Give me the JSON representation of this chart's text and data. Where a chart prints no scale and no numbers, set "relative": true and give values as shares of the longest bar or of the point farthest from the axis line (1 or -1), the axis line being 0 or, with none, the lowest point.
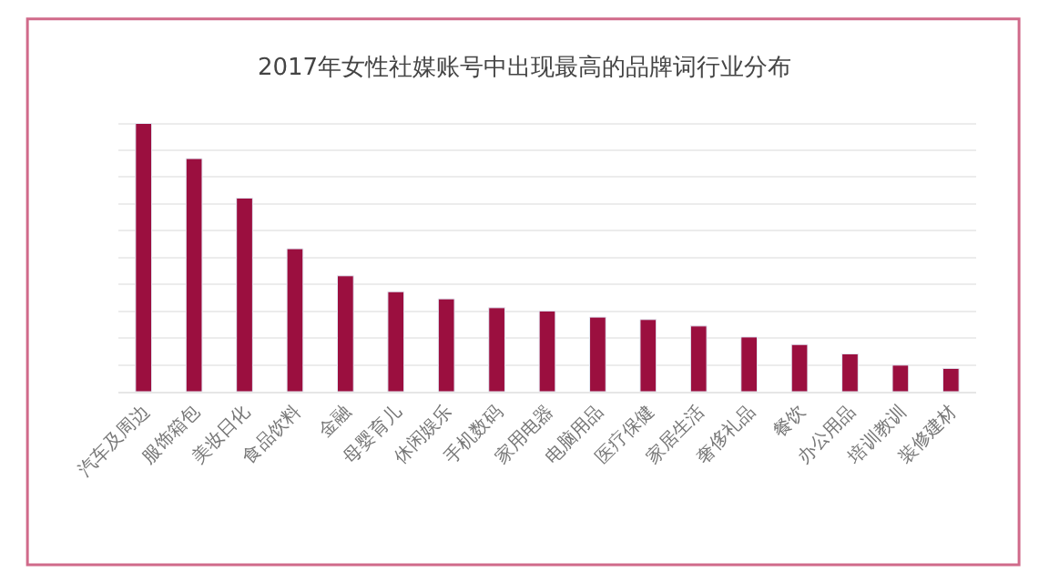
{
  "chart_data": {
    "type": "bar",
    "title": "2017年女性社媒账号中出现最高的品牌词行业分布",
    "categories": [
      "汽车及周边",
      "服饰箱包",
      "美妆日化",
      "食品饮料",
      "金融",
      "母婴育儿",
      "休闲娱乐",
      "手机数码",
      "家用电器",
      "电脑用品",
      "医疗保健",
      "家居生活",
      "奢侈礼品",
      "餐饮",
      "办公用品",
      "培训教训",
      "装修建材"
    ],
    "values": [
      1,
      0.869,
      0.722,
      0.533,
      0.432,
      0.373,
      0.346,
      0.313,
      0.301,
      0.278,
      0.269,
      0.245,
      0.204,
      0.176,
      0.141,
      0.099,
      0.087
    ],
    "color": "#9b0f3f",
    "relative": true,
    "grid": "y"
  }
}
